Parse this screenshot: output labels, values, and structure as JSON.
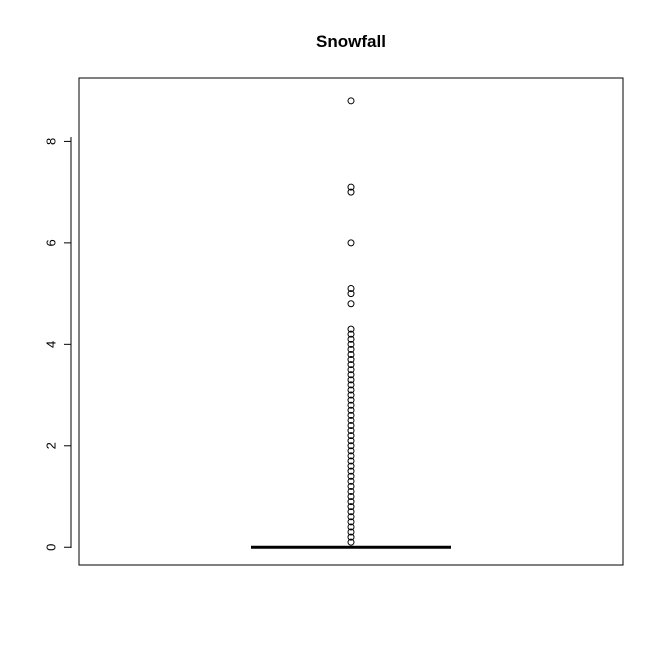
{
  "chart_data": {
    "type": "boxplot",
    "title": "Snowfall",
    "xlabel": "",
    "ylabel": "",
    "ylim": [
      -0.35,
      9.25
    ],
    "yticks": [
      0,
      2,
      4,
      6,
      8
    ],
    "box": {
      "min": 0,
      "q1": 0,
      "median": 0,
      "q3": 0,
      "max": 0
    },
    "outliers": [
      0.1,
      0.2,
      0.3,
      0.4,
      0.5,
      0.6,
      0.7,
      0.8,
      0.9,
      1.0,
      1.1,
      1.2,
      1.3,
      1.4,
      1.5,
      1.6,
      1.7,
      1.8,
      1.9,
      2.0,
      2.1,
      2.2,
      2.3,
      2.4,
      2.5,
      2.6,
      2.7,
      2.8,
      2.9,
      3.0,
      3.1,
      3.2,
      3.3,
      3.4,
      3.5,
      3.6,
      3.7,
      3.8,
      3.9,
      4.0,
      4.1,
      4.2,
      4.3,
      4.8,
      5.0,
      5.1,
      6.0,
      7.0,
      7.1,
      8.8
    ],
    "grid": false,
    "colors": {
      "box_line": "#000000",
      "point": "#000000",
      "background": "#ffffff"
    }
  }
}
